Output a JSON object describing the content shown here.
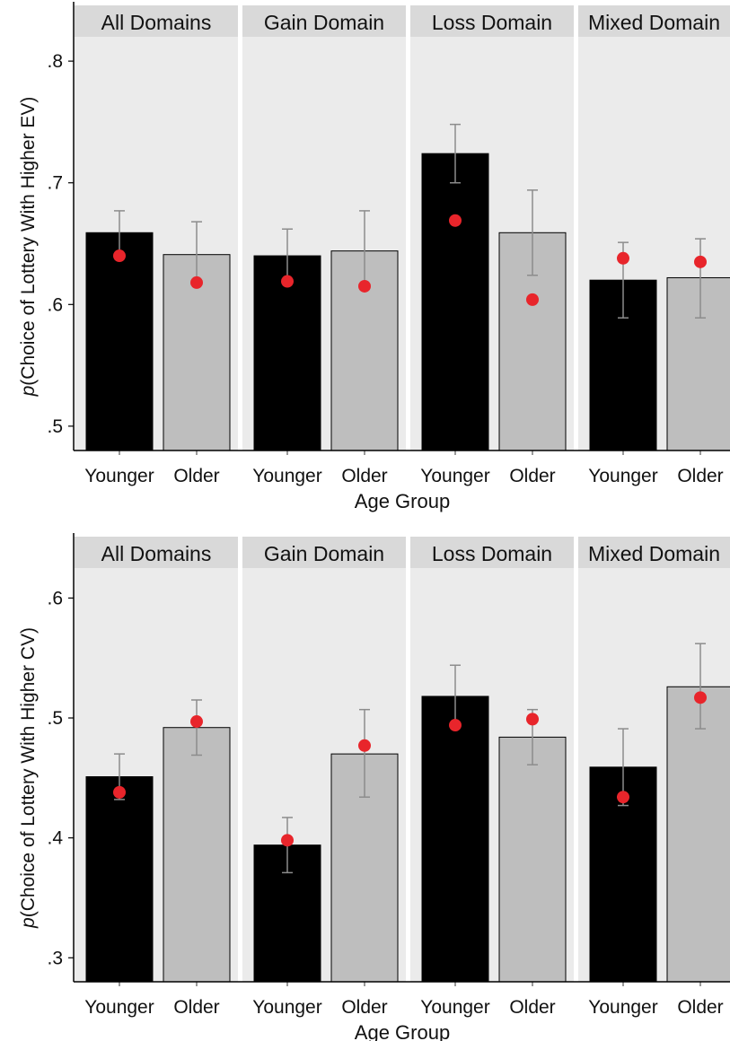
{
  "chart_data": [
    {
      "type": "bar",
      "facets": [
        "All Domains",
        "Gain Domain",
        "Loss Domain",
        "Mixed Domain"
      ],
      "categories": [
        "Younger",
        "Older"
      ],
      "xlabel": "Age Group",
      "ylabel_italic": "p",
      "ylabel_rest": "(Choice of Lottery With Higher EV)",
      "ylim": [
        0.48,
        0.82
      ],
      "yticks": [
        0.5,
        0.6,
        0.7,
        0.8
      ],
      "ytick_labels": [
        ".5",
        ".6",
        ".7",
        ".8"
      ],
      "bars": [
        [
          0.659,
          0.641
        ],
        [
          0.64,
          0.644
        ],
        [
          0.724,
          0.659
        ],
        [
          0.62,
          0.622
        ]
      ],
      "error_bars": [
        [
          [
            0.64,
            0.677
          ],
          [
            0.618,
            0.668
          ]
        ],
        [
          [
            0.619,
            0.662
          ],
          [
            0.613,
            0.677
          ]
        ],
        [
          [
            0.7,
            0.748
          ],
          [
            0.624,
            0.694
          ]
        ],
        [
          [
            0.589,
            0.651
          ],
          [
            0.589,
            0.654
          ]
        ]
      ],
      "points": [
        [
          0.64,
          0.618
        ],
        [
          0.619,
          0.615
        ],
        [
          0.669,
          0.604
        ],
        [
          0.638,
          0.635
        ]
      ]
    },
    {
      "type": "bar",
      "facets": [
        "All Domains",
        "Gain Domain",
        "Loss Domain",
        "Mixed Domain"
      ],
      "categories": [
        "Younger",
        "Older"
      ],
      "xlabel": "Age Group",
      "ylabel_italic": "p",
      "ylabel_rest": "(Choice of Lottery With Higher CV)",
      "ylim": [
        0.28,
        0.625
      ],
      "yticks": [
        0.3,
        0.4,
        0.5,
        0.6
      ],
      "ytick_labels": [
        ".3",
        ".4",
        ".5",
        ".6"
      ],
      "bars": [
        [
          0.451,
          0.492
        ],
        [
          0.394,
          0.47
        ],
        [
          0.518,
          0.484
        ],
        [
          0.459,
          0.526
        ]
      ],
      "error_bars": [
        [
          [
            0.432,
            0.47
          ],
          [
            0.469,
            0.515
          ]
        ],
        [
          [
            0.371,
            0.417
          ],
          [
            0.434,
            0.507
          ]
        ],
        [
          [
            0.492,
            0.544
          ],
          [
            0.461,
            0.507
          ]
        ],
        [
          [
            0.427,
            0.491
          ],
          [
            0.491,
            0.562
          ]
        ]
      ],
      "points": [
        [
          0.438,
          0.497
        ],
        [
          0.398,
          0.477
        ],
        [
          0.494,
          0.499
        ],
        [
          0.434,
          0.517
        ]
      ]
    }
  ],
  "colors": {
    "panel_bg": "#ebebeb",
    "strip_bg": "#d9d9d9",
    "younger_bar": "#000000",
    "older_bar": "#bebebe",
    "point": "#e8252b",
    "error_bar": "#8c8c8c"
  }
}
